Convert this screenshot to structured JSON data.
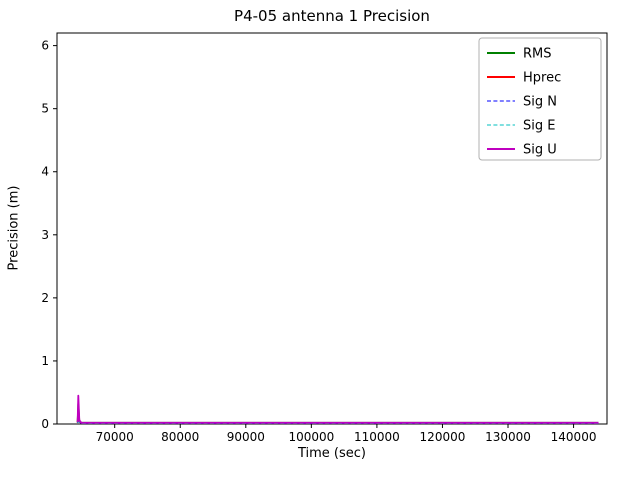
{
  "chart_data": {
    "type": "line",
    "title": "P4-05 antenna 1 Precision",
    "xlabel": "Time (sec)",
    "ylabel": "Precision (m)",
    "xlim": [
      61200,
      145100
    ],
    "ylim": [
      0,
      6.2
    ],
    "x_ticks": [
      70000,
      80000,
      90000,
      100000,
      110000,
      120000,
      130000,
      140000
    ],
    "y_ticks": [
      0,
      1,
      2,
      3,
      4,
      5,
      6
    ],
    "grid": false,
    "legend_position": "upper right",
    "axes_color": "#000000",
    "legend_border_color": "#b0b0b0",
    "x": [
      64350,
      64450,
      64600,
      64900,
      143800
    ],
    "series": [
      {
        "name": "RMS",
        "color": "#008000",
        "dash": "solid",
        "width": 1.8,
        "y": [
          0.03,
          0.32,
          0.05,
          0.02,
          0.02
        ]
      },
      {
        "name": "Hprec",
        "color": "#ff0000",
        "dash": "solid",
        "width": 1.8,
        "y": [
          0.02,
          0.25,
          0.04,
          0.015,
          0.015
        ]
      },
      {
        "name": "Sig N",
        "color": "#0000ff",
        "dash": "dashed",
        "width": 1.0,
        "y": [
          0.015,
          0.18,
          0.03,
          0.01,
          0.01
        ]
      },
      {
        "name": "Sig E",
        "color": "#00bfbf",
        "dash": "dashed",
        "width": 1.0,
        "y": [
          0.015,
          0.15,
          0.03,
          0.01,
          0.01
        ]
      },
      {
        "name": "Sig U",
        "color": "#bf00bf",
        "dash": "solid",
        "width": 1.8,
        "y": [
          0.03,
          0.45,
          0.06,
          0.02,
          0.02
        ]
      }
    ]
  }
}
